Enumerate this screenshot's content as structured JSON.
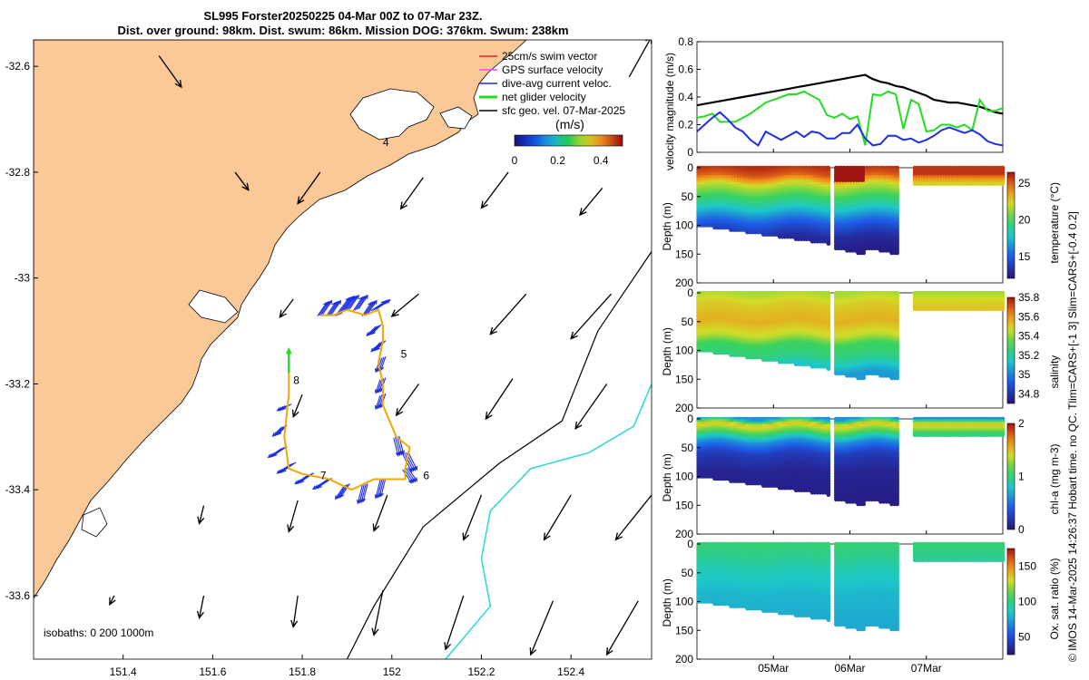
{
  "title_lines": [
    "SL995 Forster20250225 04-Mar 00Z to 07-Mar 23Z.",
    "Dist. over ground: 98km. Dist. swum: 86km. Mission DOG: 376km. Swum: 238km"
  ],
  "side_note": "© IMOS 14-Mar-2025 14:26:37 Hobart time. no QC. Tlim=CARS+[-1 3] Slim=CARS+[-0.4 0.2]",
  "colors": {
    "land": "#fbc898",
    "swim": "#e82020",
    "gps": "#ff44ff",
    "current": "#1d2ee8",
    "net": "#22dd22",
    "geo": "#000000",
    "isobath_200": "#000000",
    "isobath_1000": "#2ad8d8",
    "track": "#f0a800"
  },
  "chart_data": [
    {
      "type": "map",
      "name": "glider-track-map",
      "xlim": [
        151.2,
        152.58
      ],
      "ylim": [
        -33.72,
        -32.55
      ],
      "xticks": [
        151.4,
        151.6,
        151.8,
        152,
        152.2,
        152.4
      ],
      "xtick_labels": [
        "151.4",
        "151.6",
        "151.8",
        "152",
        "152.2",
        "152.4"
      ],
      "yticks": [
        -32.6,
        -32.8,
        -33,
        -33.2,
        -33.4,
        -33.6
      ],
      "ytick_labels": [
        "-32.6",
        "-32.8",
        "-33",
        "-33.2",
        "-33.4",
        "-33.6"
      ],
      "legend": [
        {
          "label": "25cm/s swim vector",
          "color_key": "swim"
        },
        {
          "label": "GPS surface velocity",
          "color_key": "gps"
        },
        {
          "label": "dive-avg current veloc.",
          "color_key": "current"
        },
        {
          "label": "net glider velocity",
          "color_key": "net"
        },
        {
          "label": "sfc geo. vel. 07-Mar-2025",
          "color_key": "geo"
        }
      ],
      "colorbar": {
        "label": "(m/s)",
        "min": 0,
        "max": 0.5,
        "ticks": [
          0,
          0.2,
          0.4
        ],
        "tick_labels": [
          "0",
          "0.2",
          "0.4"
        ]
      },
      "isobath_note": "isobaths: 0   200  1000m",
      "day_labels": [
        {
          "text": "4",
          "lon": 151.98,
          "lat": -32.75
        },
        {
          "text": "5",
          "lon": 152.02,
          "lat": -33.15
        },
        {
          "text": "6",
          "lon": 152.07,
          "lat": -33.38
        },
        {
          "text": "7",
          "lon": 151.84,
          "lat": -33.38
        },
        {
          "text": "8",
          "lon": 151.78,
          "lat": -33.2
        }
      ],
      "track": [
        [
          151.84,
          -33.07
        ],
        [
          151.87,
          -33.07
        ],
        [
          151.9,
          -33.06
        ],
        [
          151.94,
          -33.07
        ],
        [
          151.97,
          -33.06
        ],
        [
          151.98,
          -33.09
        ],
        [
          151.98,
          -33.12
        ],
        [
          151.97,
          -33.16
        ],
        [
          151.98,
          -33.2
        ],
        [
          151.98,
          -33.24
        ],
        [
          152.01,
          -33.3
        ],
        [
          152.04,
          -33.32
        ],
        [
          152.03,
          -33.36
        ],
        [
          152.03,
          -33.38
        ],
        [
          151.96,
          -33.38
        ],
        [
          151.91,
          -33.4
        ],
        [
          151.86,
          -33.38
        ],
        [
          151.8,
          -33.37
        ],
        [
          151.77,
          -33.36
        ],
        [
          151.76,
          -33.3
        ],
        [
          151.77,
          -33.22
        ],
        [
          151.77,
          -33.18
        ]
      ],
      "current_vectors": [
        [
          151.84,
          -33.07,
          0.02,
          0.03
        ],
        [
          151.86,
          -33.07,
          0.02,
          0.03
        ],
        [
          151.88,
          -33.07,
          0.03,
          0.04
        ],
        [
          151.9,
          -33.06,
          0.02,
          0.03
        ],
        [
          151.92,
          -33.06,
          0.02,
          0.03
        ],
        [
          151.94,
          -33.07,
          0.02,
          0.03
        ],
        [
          151.96,
          -33.06,
          0.03,
          0.02
        ],
        [
          151.97,
          -33.09,
          -0.02,
          -0.02
        ],
        [
          151.98,
          -33.12,
          -0.02,
          -0.02
        ],
        [
          151.98,
          -33.15,
          -0.01,
          -0.03
        ],
        [
          151.98,
          -33.19,
          -0.01,
          -0.03
        ],
        [
          151.98,
          -33.22,
          -0.01,
          -0.03
        ],
        [
          152.01,
          -33.3,
          0.01,
          -0.04
        ],
        [
          152.03,
          -33.33,
          0.02,
          -0.04
        ],
        [
          152.03,
          -33.36,
          0.02,
          -0.03
        ],
        [
          151.98,
          -33.38,
          -0.01,
          -0.04
        ],
        [
          151.94,
          -33.39,
          -0.01,
          -0.04
        ],
        [
          151.9,
          -33.39,
          -0.02,
          -0.03
        ],
        [
          151.86,
          -33.38,
          -0.03,
          -0.02
        ],
        [
          151.82,
          -33.37,
          -0.03,
          -0.02
        ],
        [
          151.78,
          -33.35,
          -0.03,
          -0.02
        ],
        [
          151.76,
          -33.32,
          -0.03,
          -0.02
        ],
        [
          151.76,
          -33.28,
          -0.02,
          -0.02
        ],
        [
          151.77,
          -33.24,
          -0.02,
          -0.01
        ]
      ],
      "geo_vectors": [
        [
          151.48,
          -32.58,
          0.05,
          -0.07
        ],
        [
          152.53,
          -32.62,
          0.05,
          0.09
        ],
        [
          151.65,
          -32.8,
          0.03,
          -0.04
        ],
        [
          151.84,
          -32.8,
          -0.05,
          -0.07
        ],
        [
          152.07,
          -32.81,
          -0.05,
          -0.07
        ],
        [
          152.26,
          -32.8,
          -0.06,
          -0.08
        ],
        [
          152.47,
          -32.83,
          -0.05,
          -0.06
        ],
        [
          151.78,
          -33.04,
          -0.03,
          -0.04
        ],
        [
          152.06,
          -33.03,
          -0.06,
          -0.05
        ],
        [
          152.3,
          -33.03,
          -0.08,
          -0.09
        ],
        [
          152.49,
          -33.03,
          -0.09,
          -0.1
        ],
        [
          151.8,
          -33.22,
          -0.02,
          -0.05
        ],
        [
          152.06,
          -33.2,
          -0.05,
          -0.07
        ],
        [
          152.27,
          -33.19,
          -0.06,
          -0.09
        ],
        [
          152.48,
          -33.2,
          -0.07,
          -0.1
        ],
        [
          151.58,
          -33.43,
          -0.01,
          -0.04
        ],
        [
          151.79,
          -33.42,
          -0.02,
          -0.07
        ],
        [
          151.99,
          -33.41,
          -0.03,
          -0.08
        ],
        [
          152.2,
          -33.41,
          -0.04,
          -0.1
        ],
        [
          152.4,
          -33.41,
          -0.06,
          -0.1
        ],
        [
          152.58,
          -33.41,
          -0.08,
          -0.1
        ],
        [
          151.38,
          -33.6,
          -0.01,
          -0.02
        ],
        [
          151.58,
          -33.6,
          -0.01,
          -0.05
        ],
        [
          151.79,
          -33.6,
          -0.01,
          -0.07
        ],
        [
          151.98,
          -33.59,
          -0.02,
          -0.1
        ],
        [
          152.16,
          -33.6,
          -0.04,
          -0.12
        ],
        [
          152.36,
          -33.61,
          -0.05,
          -0.12
        ],
        [
          152.55,
          -33.61,
          -0.07,
          -0.12
        ]
      ],
      "isobath_200": [
        [
          152.58,
          -32.95
        ],
        [
          152.46,
          -33.1
        ],
        [
          152.38,
          -33.27
        ],
        [
          152.24,
          -33.35
        ],
        [
          152.07,
          -33.47
        ],
        [
          151.96,
          -33.62
        ],
        [
          151.9,
          -33.72
        ]
      ],
      "isobath_1000": [
        [
          152.58,
          -33.2
        ],
        [
          152.54,
          -33.28
        ],
        [
          152.44,
          -33.33
        ],
        [
          152.31,
          -33.36
        ],
        [
          152.22,
          -33.44
        ],
        [
          152.2,
          -33.53
        ],
        [
          152.22,
          -33.62
        ],
        [
          152.17,
          -33.67
        ],
        [
          152.12,
          -33.72
        ]
      ]
    },
    {
      "type": "line",
      "name": "velocity-magnitude",
      "ylabel": "velocity magnitude (m/s)",
      "ylim": [
        0,
        0.8
      ],
      "yticks": [
        0,
        0.2,
        0.4,
        0.6,
        0.8
      ],
      "ytick_labels": [
        "0",
        "0.2",
        "0.4",
        "0.6",
        "0.8"
      ],
      "x": [
        0,
        0.1,
        0.2,
        0.3,
        0.4,
        0.5,
        0.6,
        0.7,
        0.8,
        0.9,
        1,
        1.1,
        1.2,
        1.3,
        1.4,
        1.5,
        1.6,
        1.7,
        1.8,
        1.9,
        2,
        2.1,
        2.2,
        2.3,
        2.4,
        2.5,
        2.6,
        2.7,
        2.8,
        2.9,
        3,
        3.1,
        3.2,
        3.3,
        3.4,
        3.5,
        3.6,
        3.7,
        3.8,
        3.9,
        4
      ],
      "series": [
        {
          "name": "swim",
          "color_key": "geo",
          "values": [
            0.34,
            0.35,
            0.36,
            0.37,
            0.38,
            0.39,
            0.4,
            0.41,
            0.42,
            0.43,
            0.44,
            0.45,
            0.46,
            0.47,
            0.48,
            0.49,
            0.5,
            0.51,
            0.52,
            0.53,
            0.54,
            0.55,
            0.56,
            0.53,
            0.51,
            0.5,
            0.48,
            0.47,
            0.45,
            0.43,
            0.41,
            0.38,
            0.37,
            0.36,
            0.36,
            0.35,
            0.34,
            0.33,
            0.31,
            0.29,
            0.28
          ]
        },
        {
          "name": "net",
          "color_key": "net",
          "values": [
            0.25,
            0.26,
            0.28,
            0.22,
            0.22,
            0.22,
            0.25,
            0.28,
            0.32,
            0.36,
            0.38,
            0.4,
            0.42,
            0.42,
            0.44,
            0.41,
            0.38,
            0.27,
            0.25,
            0.28,
            0.24,
            0.26,
            0.05,
            0.42,
            0.41,
            0.44,
            0.42,
            0.17,
            0.38,
            0.35,
            0.15,
            0.16,
            0.2,
            0.2,
            0.18,
            0.2,
            0.16,
            0.38,
            0.3,
            0.3,
            0.32
          ]
        },
        {
          "name": "current",
          "color_key": "current",
          "values": [
            0.15,
            0.2,
            0.25,
            0.29,
            0.24,
            0.18,
            0.15,
            0.09,
            0.05,
            0.15,
            0.12,
            0.09,
            0.12,
            0.15,
            0.11,
            0.15,
            0.14,
            0.1,
            0.1,
            0.14,
            0.14,
            0.2,
            0.1,
            0.05,
            0.06,
            0.12,
            0.12,
            0.09,
            0.1,
            0.07,
            0.09,
            0.12,
            0.16,
            0.18,
            0.16,
            0.14,
            0.16,
            0.13,
            0.08,
            0.06,
            0.05
          ]
        }
      ]
    }
  ],
  "section_panels": [
    {
      "name": "temperature",
      "ylabel": "Depth (m)",
      "cbar_label": "temperature (°C)",
      "cmin": 12,
      "cmax": 26.5,
      "cbar_ticks": [
        15,
        20,
        25
      ],
      "cbar_tick_labels": [
        "15",
        "20",
        "25"
      ],
      "ylim": [
        0,
        200
      ],
      "yticks": [
        0,
        50,
        100,
        150,
        200
      ],
      "ytick_labels": [
        "0",
        "50",
        "100",
        "150",
        "200"
      ],
      "profile": [
        [
          0,
          26
        ],
        [
          15,
          25
        ],
        [
          30,
          22
        ],
        [
          50,
          20
        ],
        [
          70,
          18
        ],
        [
          95,
          15
        ],
        [
          120,
          13
        ],
        [
          160,
          12
        ]
      ]
    },
    {
      "name": "salinity",
      "ylabel": "Depth (m)",
      "cbar_label": "salinity",
      "cmin": 34.7,
      "cmax": 35.8,
      "cbar_ticks": [
        34.8,
        35,
        35.2,
        35.4,
        35.6,
        35.8
      ],
      "cbar_tick_labels": [
        "34.8",
        "35",
        "35.2",
        "35.4",
        "35.6",
        "35.8"
      ],
      "ylim": [
        0,
        200
      ],
      "yticks": [
        0,
        50,
        100,
        150,
        200
      ],
      "ytick_labels": [
        "0",
        "50",
        "100",
        "150",
        "200"
      ],
      "profile": [
        [
          0,
          35.42
        ],
        [
          20,
          35.5
        ],
        [
          50,
          35.55
        ],
        [
          75,
          35.45
        ],
        [
          90,
          35.3
        ],
        [
          110,
          35.25
        ],
        [
          140,
          35.05
        ]
      ]
    },
    {
      "name": "chlorophyll",
      "ylabel": "Depth (m)",
      "cbar_label": "chl-a (mg m-3)",
      "cmin": 0,
      "cmax": 2,
      "cbar_ticks": [
        0,
        1,
        2
      ],
      "cbar_tick_labels": [
        "0",
        "1",
        "2"
      ],
      "ylim": [
        0,
        200
      ],
      "yticks": [
        0,
        50,
        100,
        150,
        200
      ],
      "ytick_labels": [
        "0",
        "50",
        "100",
        "150",
        "200"
      ],
      "profile": [
        [
          0,
          0.6
        ],
        [
          10,
          1.5
        ],
        [
          25,
          1.1
        ],
        [
          40,
          0.6
        ],
        [
          60,
          0.25
        ],
        [
          90,
          0.1
        ],
        [
          150,
          0.05
        ]
      ]
    },
    {
      "name": "oxygen",
      "ylabel": "Depth (m)",
      "cbar_label": "Ox. sat. ratio (%)",
      "cmin": 25,
      "cmax": 175,
      "cbar_ticks": [
        50,
        100,
        150
      ],
      "cbar_tick_labels": [
        "50",
        "100",
        "150"
      ],
      "ylim": [
        0,
        200
      ],
      "yticks": [
        0,
        50,
        100,
        150,
        200
      ],
      "ytick_labels": [
        "0",
        "50",
        "100",
        "150",
        "200"
      ],
      "profile": [
        [
          0,
          102
        ],
        [
          20,
          98
        ],
        [
          50,
          88
        ],
        [
          90,
          80
        ],
        [
          150,
          76
        ]
      ]
    }
  ],
  "section_segments": [
    {
      "t0": 0.02,
      "t1": 1.72,
      "d0": 100,
      "d1": 132
    },
    {
      "t0": 1.82,
      "t1": 2.18,
      "d0": 140,
      "d1": 150
    },
    {
      "t0": 2.22,
      "t1": 2.62,
      "d0": 140,
      "d1": 150
    },
    {
      "t0": 2.85,
      "t1": 4.0,
      "d0": 30,
      "d1": 30
    }
  ],
  "time_axis": {
    "xlim": [
      0,
      4
    ],
    "ticks": [
      1,
      2,
      3
    ],
    "tick_labels": [
      "05Mar",
      "06Mar",
      "07Mar"
    ]
  }
}
